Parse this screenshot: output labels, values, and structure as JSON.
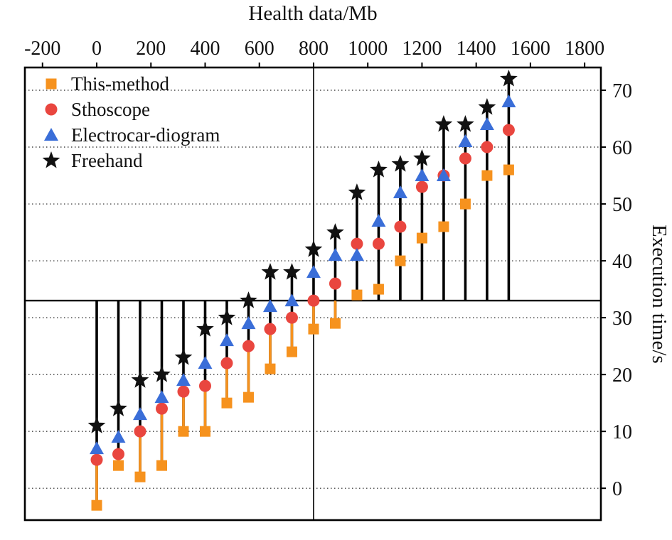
{
  "chart_data": {
    "type": "scatter",
    "title": "",
    "xlabel": "Health data/Mb",
    "ylabel": "Execution time/s",
    "xlim": [
      -265,
      1860
    ],
    "ylim": [
      -5.6,
      74
    ],
    "x_ticks": [
      -200,
      0,
      200,
      400,
      600,
      800,
      1000,
      1200,
      1400,
      1600,
      1800
    ],
    "y_ticks": [
      0,
      10,
      20,
      30,
      40,
      50,
      60,
      70
    ],
    "grid": "horizontal-dotted",
    "legend_position": "top-left",
    "baseline": 33,
    "vline": 800,
    "x": [
      0,
      80,
      160,
      240,
      320,
      400,
      480,
      560,
      640,
      720,
      800,
      880,
      960,
      1040,
      1120,
      1200,
      1280,
      1360,
      1440,
      1520
    ],
    "series": [
      {
        "name": "This-method",
        "marker": "square",
        "color": "#F6921E",
        "values": [
          -3,
          4,
          2,
          4,
          10,
          10,
          15,
          16,
          21,
          24,
          28,
          29,
          34,
          35,
          40,
          44,
          46,
          50,
          55,
          56
        ]
      },
      {
        "name": "Sthoscope",
        "marker": "circle",
        "color": "#E9463F",
        "values": [
          5,
          6,
          10,
          14,
          17,
          18,
          22,
          25,
          28,
          30,
          33,
          36,
          43,
          43,
          46,
          53,
          55,
          58,
          60,
          63
        ]
      },
      {
        "name": "Electrocar-diogram",
        "marker": "triangle",
        "color": "#3A6ED8",
        "values": [
          7,
          9,
          13,
          16,
          19,
          22,
          26,
          29,
          32,
          33,
          38,
          41,
          41,
          47,
          52,
          55,
          55,
          61,
          64,
          68
        ]
      },
      {
        "name": "Freehand",
        "marker": "star",
        "color": "#111111",
        "values": [
          11,
          14,
          19,
          20,
          23,
          28,
          30,
          33,
          38,
          38,
          42,
          45,
          52,
          56,
          57,
          58,
          64,
          64,
          67,
          72
        ]
      }
    ]
  }
}
